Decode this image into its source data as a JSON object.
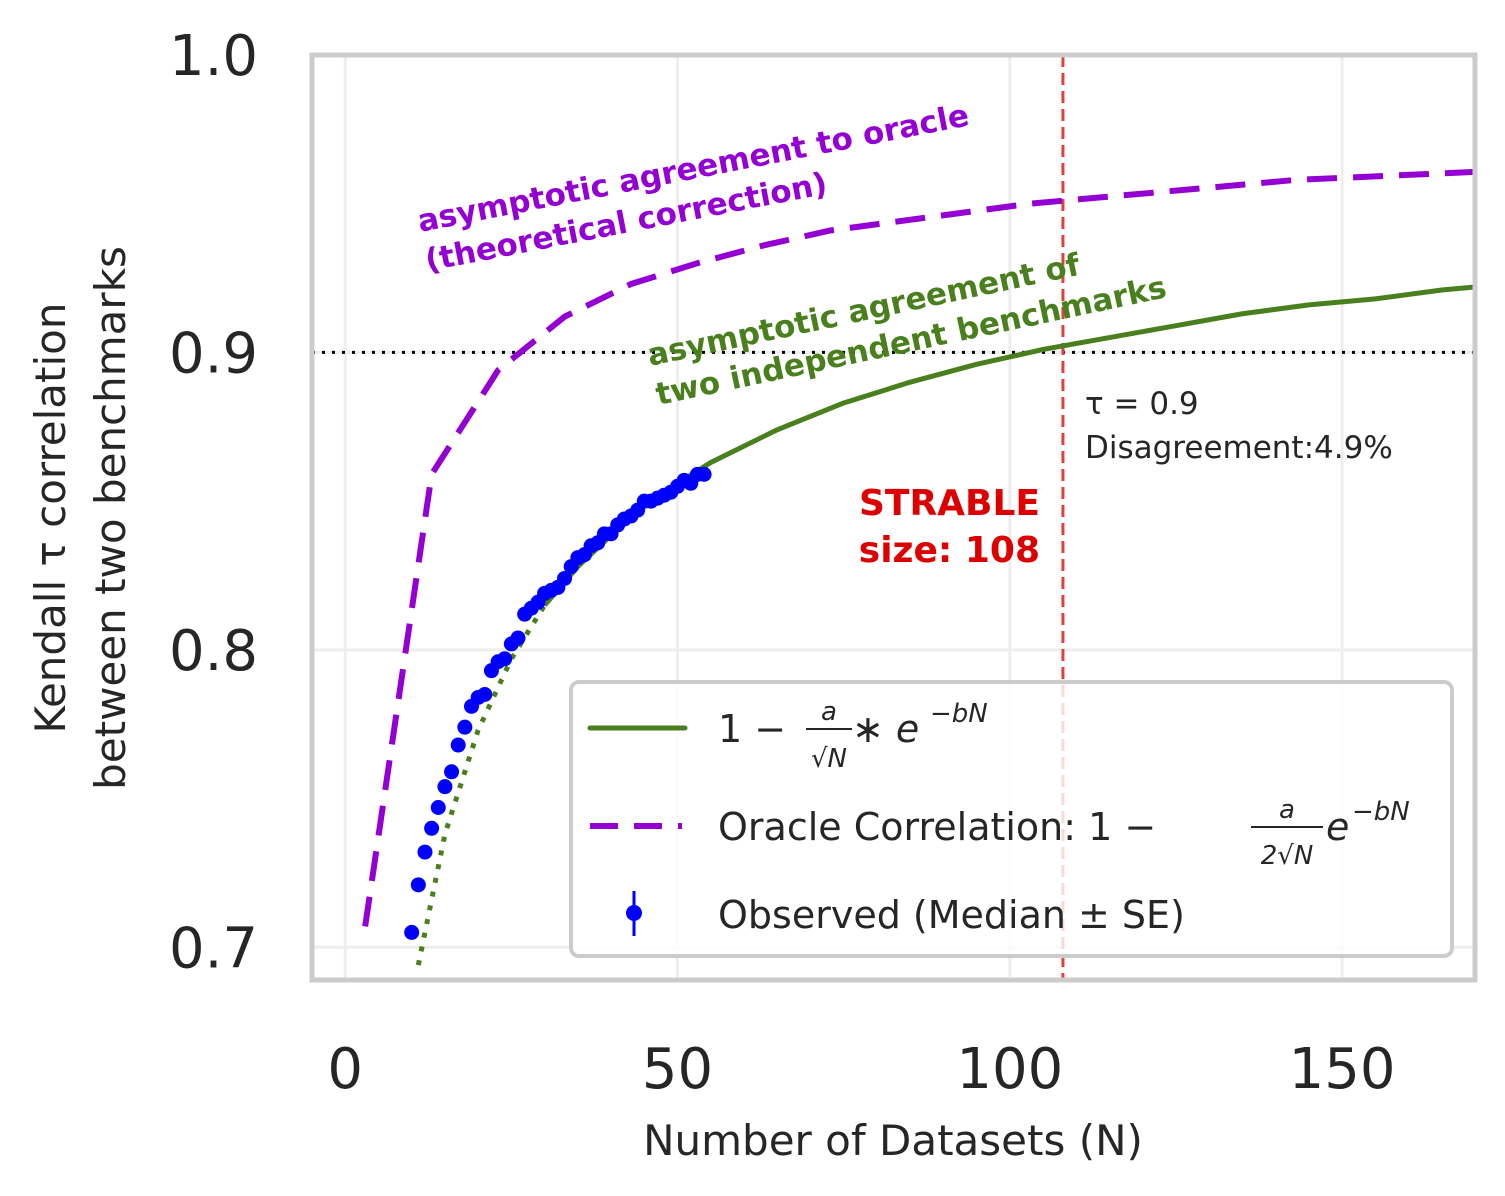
{
  "chart_data": {
    "type": "line",
    "title": "",
    "xlabel": "Number of Datasets (N)",
    "ylabel": [
      "Kendall τ correlation",
      "between two benchmarks"
    ],
    "xlim": [
      -5,
      170
    ],
    "ylim": [
      0.689,
      1.0
    ],
    "xticks": [
      "0",
      "50",
      "100",
      "150"
    ],
    "xtick_values": [
      0,
      50,
      100,
      150
    ],
    "yticks": [
      "0.7",
      "0.8",
      "0.9",
      "1.0"
    ],
    "ytick_values": [
      0.7,
      0.8,
      0.9,
      1.0
    ],
    "grid": true,
    "legend_position": "lower-right",
    "colors": {
      "fit": "#4a7f1e",
      "oracle": "#9400D3",
      "observed": "#0000ff",
      "threshold_v": "#e04040",
      "threshold_h": "#000000"
    },
    "series": [
      {
        "name": "1 − a/√N ∗ e^(−bN)",
        "style": "solid",
        "x": [
          30,
          35,
          45,
          55,
          65,
          75,
          85,
          95,
          105,
          115,
          125,
          135,
          145,
          155,
          165,
          170
        ],
        "y": [
          0.815,
          0.828,
          0.849,
          0.863,
          0.874,
          0.883,
          0.89,
          0.896,
          0.901,
          0.905,
          0.909,
          0.913,
          0.916,
          0.918,
          0.921,
          0.922
        ]
      },
      {
        "style": "dotted",
        "x": [
          11,
          15,
          20,
          25,
          30
        ],
        "y": [
          0.694,
          0.738,
          0.773,
          0.797,
          0.815
        ]
      },
      {
        "name": "Oracle Correlation: 1 − a/(2√N) e^(−bN)",
        "style": "dashed",
        "x": [
          3,
          13,
          23,
          33,
          43,
          53,
          63,
          73,
          83,
          93,
          103,
          113,
          123,
          133,
          143,
          153,
          163,
          173
        ],
        "y": [
          0.707,
          0.859,
          0.894,
          0.912,
          0.923,
          0.93,
          0.936,
          0.941,
          0.944,
          0.947,
          0.95,
          0.952,
          0.954,
          0.956,
          0.958,
          0.959,
          0.96,
          0.961
        ]
      },
      {
        "name": "Observed (Median ± SE)",
        "style": "points",
        "x": [
          10,
          11,
          12,
          13,
          14,
          15,
          16,
          17,
          18,
          19,
          20,
          21,
          22,
          23,
          24,
          25,
          26,
          27,
          28,
          29,
          30,
          31,
          32,
          33,
          34,
          35,
          36,
          37,
          38,
          39,
          40,
          41,
          42,
          43,
          44,
          45,
          46,
          47,
          48,
          49,
          50,
          51,
          52,
          53,
          54
        ],
        "y": [
          0.705,
          0.721,
          0.732,
          0.74,
          0.747,
          0.754,
          0.759,
          0.768,
          0.774,
          0.781,
          0.784,
          0.785,
          0.793,
          0.796,
          0.797,
          0.802,
          0.804,
          0.812,
          0.814,
          0.816,
          0.819,
          0.82,
          0.821,
          0.824,
          0.828,
          0.831,
          0.832,
          0.835,
          0.836,
          0.839,
          0.839,
          0.842,
          0.844,
          0.845,
          0.847,
          0.85,
          0.85,
          0.851,
          0.852,
          0.853,
          0.855,
          0.857,
          0.856,
          0.859,
          0.859
        ]
      }
    ],
    "reference_lines": {
      "tau_threshold": 0.9,
      "strable_size": 108
    },
    "annotations": {
      "oracle_line1": "asymptotic agreement to oracle",
      "oracle_line2": "(theoretical correction)",
      "fit_line1": "asymptotic agreement of",
      "fit_line2": "two independent benchmarks",
      "tau_text": "τ = 0.9",
      "disagreement_text": "Disagreement:4.9%",
      "strable_line1": "STRABLE",
      "strable_line2": "size: 108"
    },
    "legend": {
      "fit": {
        "one_minus": "1 − ",
        "num": "a",
        "den": "√N",
        "mid": " ∗ e",
        "exp": "−bN"
      },
      "oracle": {
        "prefix": "Oracle Correlation: 1 − ",
        "num": "a",
        "den": "2√N",
        "mid": "e",
        "exp": "−bN"
      },
      "observed": "Observed (Median ± SE)"
    }
  }
}
